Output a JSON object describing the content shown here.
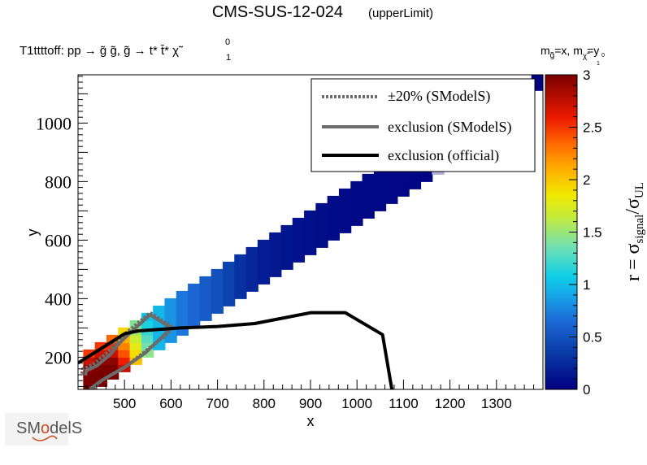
{
  "header": {
    "title": "CMS-SUS-12-024",
    "subtitle": "(upperLimit)",
    "process": "T1ttttoff: pp  → g̃ g̃, g̃  → t* t̄* χ̃",
    "process_sup": "0",
    "process_sub": "1",
    "mass_note_1": "m",
    "mass_note_sub1": "g̃",
    "mass_note_2": "=x, m",
    "mass_note_sub2": "χ̃",
    "mass_note_sub2b": "0",
    "mass_note_sub2c": "1",
    "mass_note_3": "=y"
  },
  "logo": {
    "text_left": "SM",
    "text_mid": "o",
    "text_right": "delS"
  },
  "chart_data": {
    "type": "heatmap",
    "xlabel": "x",
    "ylabel": "y",
    "xlim": [
      400,
      1400
    ],
    "ylim": [
      90,
      1165
    ],
    "x_ticks": [
      500,
      600,
      700,
      800,
      900,
      1000,
      1100,
      1200,
      1300
    ],
    "y_ticks": [
      200,
      400,
      600,
      800,
      1000
    ],
    "colorbar": {
      "label_main": "r = σ",
      "label_sub1": "signal",
      "label_mid": "/σ",
      "label_sub2": "UL",
      "range": [
        0,
        3
      ],
      "ticks": [
        0,
        0.5,
        1,
        1.5,
        2,
        2.5,
        3
      ],
      "tick_labels": [
        "0",
        "0.5",
        "1",
        "1.5",
        "2",
        "2.5",
        "3"
      ]
    },
    "cell_size": [
      25,
      25
    ],
    "band": {
      "description_points": [
        {
          "x": 412,
          "r": 3.0
        },
        {
          "x": 450,
          "r": 3.0
        },
        {
          "x": 475,
          "r": 2.6
        },
        {
          "x": 500,
          "r": 2.0
        },
        {
          "x": 525,
          "r": 1.4
        },
        {
          "x": 550,
          "r": 1.05
        },
        {
          "x": 600,
          "r": 0.75
        },
        {
          "x": 650,
          "r": 0.6
        },
        {
          "x": 700,
          "r": 0.45
        },
        {
          "x": 750,
          "r": 0.25
        },
        {
          "x": 800,
          "r": 0.15
        },
        {
          "x": 900,
          "r": 0.08
        },
        {
          "x": 1000,
          "r": 0.05
        },
        {
          "x": 1100,
          "r": 0.04
        },
        {
          "x": 1150,
          "r": 0.03
        }
      ],
      "x_start": 412,
      "x_end_colored": 1150,
      "x_end": 1360,
      "offset_low": 325,
      "offset_high": 200,
      "nocolor_from": 1150
    },
    "top_right_cell": {
      "x": 1387,
      "y": 1140,
      "r": 0.02
    },
    "legend": {
      "position": "top-right",
      "entries": [
        {
          "label": "±20% (SModelS)",
          "style": "dotted",
          "color": "#6b6b6b"
        },
        {
          "label": "exclusion (SModelS)",
          "style": "solid",
          "color": "#6b6b6b"
        },
        {
          "label": "exclusion (official)",
          "style": "solid",
          "color": "#000000"
        }
      ]
    },
    "curves": {
      "official": [
        [
          400,
          180
        ],
        [
          500,
          280
        ],
        [
          530,
          290
        ],
        [
          620,
          300
        ],
        [
          700,
          305
        ],
        [
          780,
          315
        ],
        [
          900,
          352
        ],
        [
          975,
          352
        ],
        [
          1055,
          277
        ],
        [
          1075,
          90
        ]
      ],
      "smodels": [
        [
          425,
          90
        ],
        [
          450,
          120
        ],
        [
          500,
          165
        ],
        [
          545,
          215
        ],
        [
          580,
          268
        ],
        [
          600,
          300
        ],
        [
          555,
          345
        ],
        [
          510,
          280
        ],
        [
          490,
          250
        ],
        [
          470,
          210
        ],
        [
          440,
          170
        ],
        [
          418,
          155
        ],
        [
          416,
          138
        ]
      ],
      "smodels_20": [
        [
          432,
          95
        ],
        [
          458,
          128
        ],
        [
          506,
          172
        ],
        [
          548,
          225
        ],
        [
          584,
          268
        ],
        [
          605,
          302
        ],
        [
          555,
          352
        ],
        [
          505,
          285
        ],
        [
          485,
          255
        ],
        [
          462,
          215
        ],
        [
          432,
          175
        ],
        [
          410,
          160
        ],
        [
          408,
          140
        ]
      ]
    }
  }
}
